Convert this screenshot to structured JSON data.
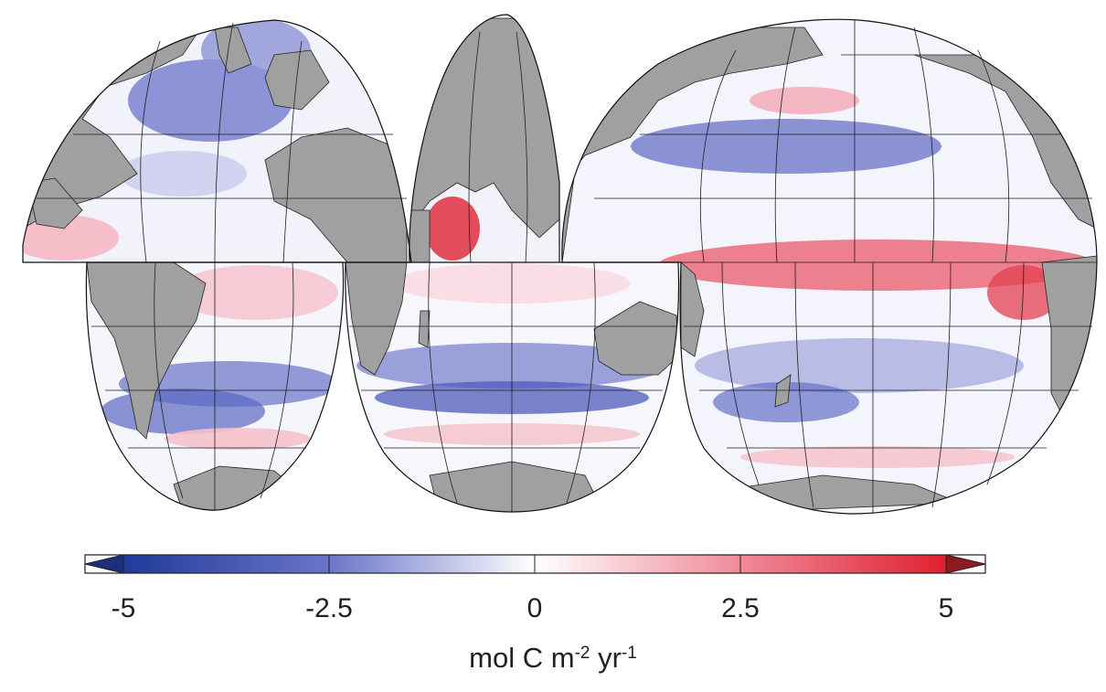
{
  "map": {
    "projection": "interrupted Goode homolosine",
    "field": "sea-air carbon flux anomaly",
    "land_color": "#a0a0a0",
    "coast_color": "#222222",
    "grid_color": "#1e1e1e",
    "lobes": [
      "north-atlantic-americas",
      "south-america-atlantic",
      "indian-ocean",
      "pacific-ocean"
    ]
  },
  "colorbar": {
    "ticks": [
      "-5",
      "-2.5",
      "0",
      "2.5",
      "5"
    ],
    "tick_values": [
      -5,
      -2.5,
      0,
      2.5,
      5
    ],
    "range": [
      -5,
      5
    ],
    "extend": "both",
    "colors": {
      "low": "#1f3a99",
      "mid_low": "#6a75c8",
      "center": "#ffffff",
      "mid_high": "#f08a99",
      "high": "#e0202f",
      "low_arrow": "#1b2f7d",
      "high_arrow": "#8e1a1f"
    },
    "unit": {
      "base": "mol C m",
      "exp1": "-2",
      "mid": " yr",
      "exp2": "-1"
    }
  }
}
